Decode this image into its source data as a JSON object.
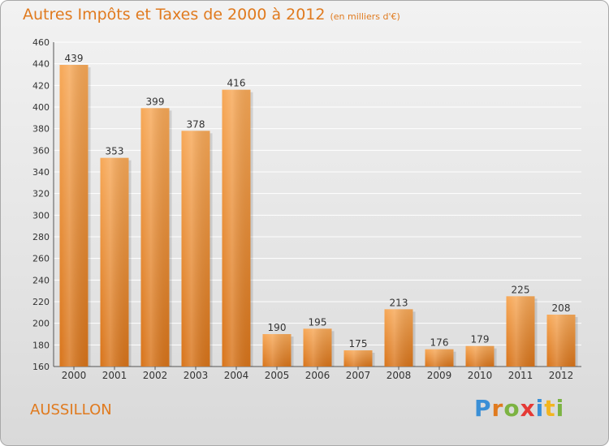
{
  "title": "Autres Impôts et Taxes de 2000 à 2012",
  "unit": "(en milliers d'€)",
  "commune": "AUSSILLON",
  "brand": "Proxiti",
  "colors": {
    "title": "#e07a1e",
    "bar_top": "#f7a857",
    "bar_bottom": "#d8741a",
    "grid": "#ffffff"
  },
  "chart_data": {
    "type": "bar",
    "categories": [
      "2000",
      "2001",
      "2002",
      "2003",
      "2004",
      "2005",
      "2006",
      "2007",
      "2008",
      "2009",
      "2010",
      "2011",
      "2012"
    ],
    "values": [
      439,
      353,
      399,
      378,
      416,
      190,
      195,
      175,
      213,
      176,
      179,
      225,
      208
    ],
    "ylim": [
      160,
      460
    ],
    "yticks": [
      160,
      180,
      200,
      220,
      240,
      260,
      280,
      300,
      320,
      340,
      360,
      380,
      400,
      420,
      440,
      460
    ],
    "grid": true,
    "data_labels": true,
    "title": "Autres Impôts et Taxes de 2000 à 2012",
    "xlabel": "",
    "ylabel": ""
  }
}
